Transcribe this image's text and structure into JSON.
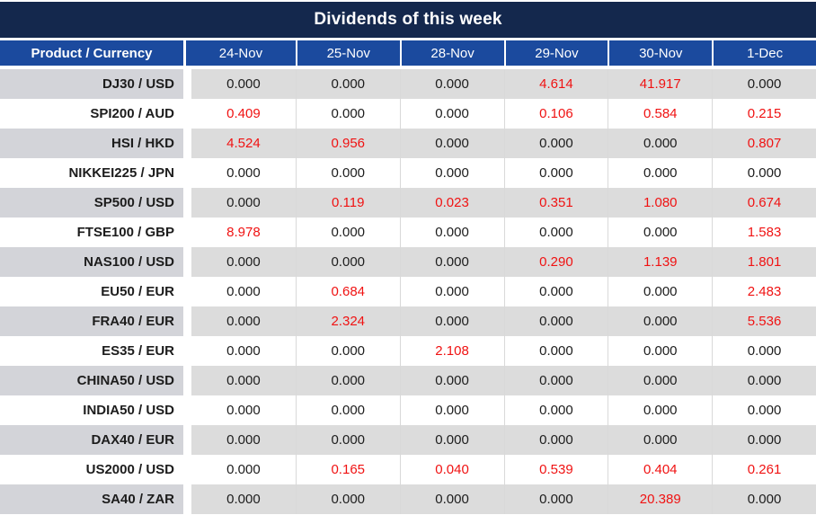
{
  "chart_data": {
    "type": "table",
    "title": "Dividends of this week",
    "row_header_label": "Product / Currency",
    "columns": [
      "24-Nov",
      "25-Nov",
      "28-Nov",
      "29-Nov",
      "30-Nov",
      "1-Dec"
    ],
    "rows": [
      {
        "product": "DJ30 / USD",
        "values": [
          "0.000",
          "0.000",
          "0.000",
          "4.614",
          "41.917",
          "0.000"
        ],
        "red": [
          false,
          false,
          false,
          true,
          true,
          false
        ]
      },
      {
        "product": "SPI200 / AUD",
        "values": [
          "0.409",
          "0.000",
          "0.000",
          "0.106",
          "0.584",
          "0.215"
        ],
        "red": [
          true,
          false,
          false,
          true,
          true,
          true
        ]
      },
      {
        "product": "HSI / HKD",
        "values": [
          "4.524",
          "0.956",
          "0.000",
          "0.000",
          "0.000",
          "0.807"
        ],
        "red": [
          true,
          true,
          false,
          false,
          false,
          true
        ]
      },
      {
        "product": "NIKKEI225 / JPN",
        "values": [
          "0.000",
          "0.000",
          "0.000",
          "0.000",
          "0.000",
          "0.000"
        ],
        "red": [
          false,
          false,
          false,
          false,
          false,
          false
        ]
      },
      {
        "product": "SP500 / USD",
        "values": [
          "0.000",
          "0.119",
          "0.023",
          "0.351",
          "1.080",
          "0.674"
        ],
        "red": [
          false,
          true,
          true,
          true,
          true,
          true
        ]
      },
      {
        "product": "FTSE100 / GBP",
        "values": [
          "8.978",
          "0.000",
          "0.000",
          "0.000",
          "0.000",
          "1.583"
        ],
        "red": [
          true,
          false,
          false,
          false,
          false,
          true
        ]
      },
      {
        "product": "NAS100 / USD",
        "values": [
          "0.000",
          "0.000",
          "0.000",
          "0.290",
          "1.139",
          "1.801"
        ],
        "red": [
          false,
          false,
          false,
          true,
          true,
          true
        ]
      },
      {
        "product": "EU50 / EUR",
        "values": [
          "0.000",
          "0.684",
          "0.000",
          "0.000",
          "0.000",
          "2.483"
        ],
        "red": [
          false,
          true,
          false,
          false,
          false,
          true
        ]
      },
      {
        "product": "FRA40 / EUR",
        "values": [
          "0.000",
          "2.324",
          "0.000",
          "0.000",
          "0.000",
          "5.536"
        ],
        "red": [
          false,
          true,
          false,
          false,
          false,
          true
        ]
      },
      {
        "product": "ES35 / EUR",
        "values": [
          "0.000",
          "0.000",
          "2.108",
          "0.000",
          "0.000",
          "0.000"
        ],
        "red": [
          false,
          false,
          true,
          false,
          false,
          false
        ]
      },
      {
        "product": "CHINA50 / USD",
        "values": [
          "0.000",
          "0.000",
          "0.000",
          "0.000",
          "0.000",
          "0.000"
        ],
        "red": [
          false,
          false,
          false,
          false,
          false,
          false
        ]
      },
      {
        "product": "INDIA50 / USD",
        "values": [
          "0.000",
          "0.000",
          "0.000",
          "0.000",
          "0.000",
          "0.000"
        ],
        "red": [
          false,
          false,
          false,
          false,
          false,
          false
        ]
      },
      {
        "product": "DAX40 / EUR",
        "values": [
          "0.000",
          "0.000",
          "0.000",
          "0.000",
          "0.000",
          "0.000"
        ],
        "red": [
          false,
          false,
          false,
          false,
          false,
          false
        ]
      },
      {
        "product": "US2000 / USD",
        "values": [
          "0.000",
          "0.165",
          "0.040",
          "0.539",
          "0.404",
          "0.261"
        ],
        "red": [
          false,
          true,
          true,
          true,
          true,
          true
        ]
      },
      {
        "product": "SA40 / ZAR",
        "values": [
          "0.000",
          "0.000",
          "0.000",
          "0.000",
          "20.389",
          "0.000"
        ],
        "red": [
          false,
          false,
          false,
          false,
          true,
          false
        ]
      }
    ]
  },
  "colors": {
    "title_bar_bg": "#14284d",
    "header_bg": "#1b4a9e",
    "header_text": "#ffffff",
    "row_gray_label": "#d3d4d9",
    "row_gray_data": "#dcdcdc",
    "row_white": "#ffffff",
    "value_black": "#1c1c1c",
    "value_red": "#f01212",
    "cell_border": "#d9d9d9"
  }
}
